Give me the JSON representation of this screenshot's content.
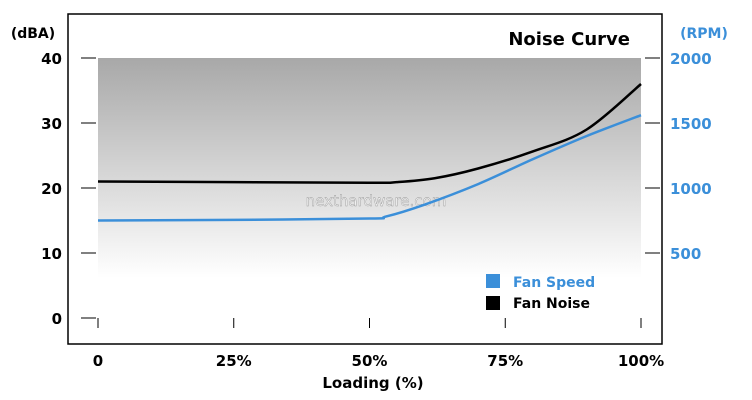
{
  "chart_data": {
    "type": "line",
    "title": "Noise Curve",
    "xlabel": "Loading (%)",
    "ylabel_left": "(dBA)",
    "ylabel_right": "(RPM)",
    "x_ticks": [
      "0",
      "25%",
      "50%",
      "75%",
      "100%"
    ],
    "y_left_ticks": [
      "0",
      "10",
      "20",
      "30",
      "40"
    ],
    "y_right_ticks": [
      "500",
      "1000",
      "1500",
      "2000"
    ],
    "xlim": [
      0,
      100
    ],
    "ylim_left": [
      0,
      40
    ],
    "ylim_right": [
      0,
      2000
    ],
    "watermark": "nexthardware.com",
    "legend_position": "bottom-right",
    "series": [
      {
        "name": "Fan Speed",
        "axis": "right",
        "color": "#3b8fd9",
        "x": [
          0,
          25,
          50,
          53,
          60,
          70,
          80,
          90,
          100
        ],
        "values": [
          750,
          755,
          765,
          780,
          870,
          1030,
          1220,
          1400,
          1560
        ]
      },
      {
        "name": "Fan Noise",
        "axis": "left",
        "color": "#000000",
        "x": [
          0,
          25,
          50,
          55,
          62,
          70,
          80,
          90,
          100
        ],
        "values": [
          21.0,
          20.9,
          20.8,
          20.9,
          21.5,
          23.0,
          25.6,
          29.0,
          36.0
        ]
      }
    ]
  }
}
